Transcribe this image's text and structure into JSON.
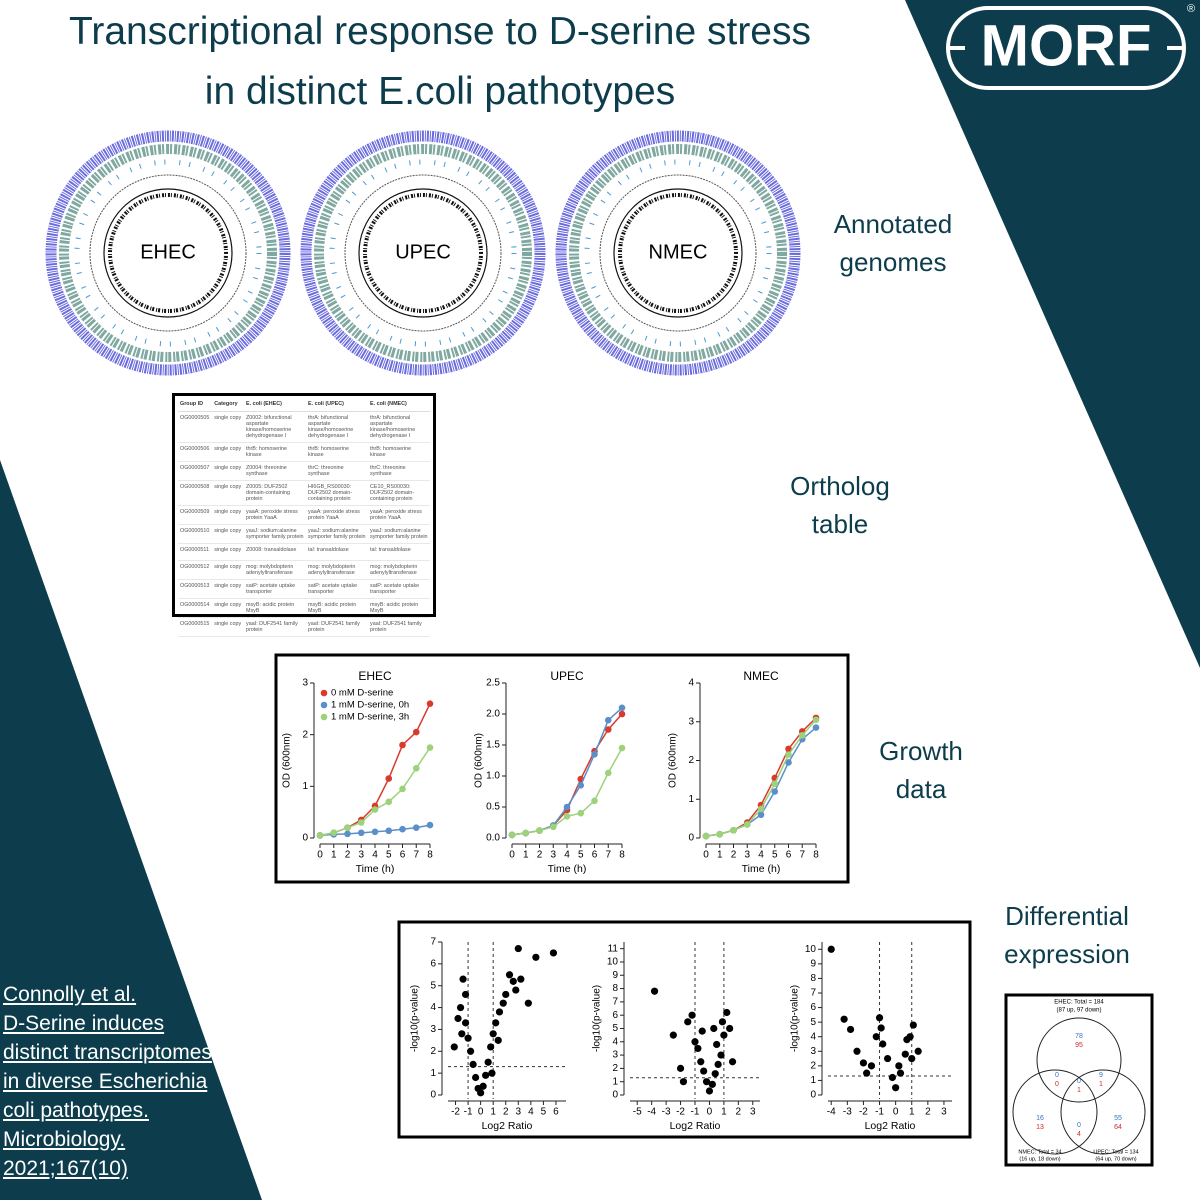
{
  "header": {
    "title_lines": [
      "Transcriptional response to D-serine stress",
      "in distinct E.coli pathotypes"
    ],
    "logo": "MORF",
    "registered": "®"
  },
  "genomes": {
    "labels": [
      "EHEC",
      "UPEC",
      "NMEC"
    ],
    "caption": "Annotated genomes"
  },
  "ortholog_table": {
    "caption": "Ortholog table",
    "columns": [
      "Group ID",
      "Category",
      "E. coli (EHEC)",
      "E. coli (UPEC)",
      "E. coli (NMEC)"
    ],
    "rows": [
      [
        "OG0000505",
        "single copy",
        "Z0002: bifunctional aspartate kinase/homoserine dehydrogenase I",
        "thrA: bifunctional aspartate kinase/homoserine dehydrogenase I",
        "thrA: bifunctional aspartate kinase/homoserine dehydrogenase I"
      ],
      [
        "OG0000506",
        "single copy",
        "thrB: homoserine kinase",
        "thrB: homoserine kinase",
        "thrB: homoserine kinase"
      ],
      [
        "OG0000507",
        "single copy",
        "Z0004: threonine synthase",
        "thrC: threonine synthase",
        "thrC: threonine synthase"
      ],
      [
        "OG0000508",
        "single copy",
        "Z0005: DUF2502 domain-containing protein",
        "HI6GB_RS00030: DUF2502 domain-containing protein",
        "CE10_RS00030: DUF2502 domain-containing protein"
      ],
      [
        "OG0000509",
        "single copy",
        "yaaA: peroxide stress protein YaaA",
        "yaaA: peroxide stress protein YaaA",
        "yaaA: peroxide stress protein YaaA"
      ],
      [
        "OG0000510",
        "single copy",
        "yaaJ: sodium:alanine symporter family protein",
        "yaaJ: sodium:alanine symporter family protein",
        "yaaJ: sodium:alanine symporter family protein"
      ],
      [
        "OG0000511",
        "single copy",
        "Z0008: transaldolase",
        "tal: transaldolase",
        "tal: transaldolase"
      ],
      [
        "OG0000512",
        "single copy",
        "mog: molybdopterin adenylyltransferase",
        "mog: molybdopterin adenylyltransferase",
        "mog: molybdopterin adenylyltransferase"
      ],
      [
        "OG0000513",
        "single copy",
        "satP: acetate uptake transporter",
        "satP: acetate uptake transporter",
        "satP: acetate uptake transporter"
      ],
      [
        "OG0000514",
        "single copy",
        "msyB: acidic protein MsyB",
        "msyB: acidic protein MsyB",
        "msyB: acidic protein MsyB"
      ],
      [
        "OG0000515",
        "single copy",
        "yaaI: DUF2541 family protein",
        "yaaI: DUF2541 family protein",
        "yaaI: DUF2541 family protein"
      ]
    ]
  },
  "growth_caption": "Growth data",
  "expression_caption": "Differential expression",
  "chart_data": [
    {
      "type": "line",
      "title": "EHEC",
      "x_label": "Time (h)",
      "y_label": "OD (600nm)",
      "x": [
        0,
        1,
        2,
        3,
        4,
        5,
        6,
        7,
        8
      ],
      "xlim": [
        0,
        8
      ],
      "xticks": [
        0,
        1,
        2,
        3,
        4,
        5,
        6,
        7,
        8
      ],
      "ylim": [
        0,
        3
      ],
      "yticks": [
        0,
        1,
        2,
        3
      ],
      "series": [
        {
          "name": "0 mM D-serine",
          "color": "#d93a2b",
          "values": [
            0.05,
            0.1,
            0.2,
            0.35,
            0.62,
            1.15,
            1.8,
            2.05,
            2.6
          ]
        },
        {
          "name": "1 mM D-serine, 0h",
          "color": "#5b8fc9",
          "values": [
            0.05,
            0.07,
            0.08,
            0.1,
            0.12,
            0.14,
            0.17,
            0.2,
            0.25
          ]
        },
        {
          "name": "1 mM D-serine, 3h",
          "color": "#9bd27a",
          "values": [
            0.05,
            0.1,
            0.2,
            0.3,
            0.55,
            0.7,
            0.95,
            1.35,
            1.75
          ]
        }
      ]
    },
    {
      "type": "line",
      "title": "UPEC",
      "x_label": "Time (h)",
      "y_label": "OD (600nm)",
      "x": [
        0,
        1,
        2,
        3,
        4,
        5,
        6,
        7,
        8
      ],
      "xlim": [
        0,
        8
      ],
      "xticks": [
        0,
        1,
        2,
        3,
        4,
        5,
        6,
        7,
        8
      ],
      "ylim": [
        0,
        2.5
      ],
      "yticks": [
        {
          "value": 0,
          "label": "0.0"
        },
        0.5,
        {
          "value": 1,
          "label": "1.0"
        },
        1.5,
        {
          "value": 2,
          "label": "2.0"
        },
        2.5
      ],
      "series": [
        {
          "color": "#d93a2b",
          "values": [
            0.05,
            0.08,
            0.12,
            0.2,
            0.45,
            0.95,
            1.4,
            1.75,
            2.0
          ]
        },
        {
          "color": "#5b8fc9",
          "values": [
            0.05,
            0.08,
            0.12,
            0.2,
            0.5,
            0.85,
            1.35,
            1.9,
            2.1
          ]
        },
        {
          "color": "#9bd27a",
          "values": [
            0.05,
            0.08,
            0.12,
            0.18,
            0.35,
            0.4,
            0.6,
            1.05,
            1.45
          ]
        }
      ]
    },
    {
      "type": "line",
      "title": "NMEC",
      "x_label": "Time (h)",
      "y_label": "OD (600nm)",
      "x": [
        0,
        1,
        2,
        3,
        4,
        5,
        6,
        7,
        8
      ],
      "xlim": [
        0,
        8
      ],
      "xticks": [
        0,
        1,
        2,
        3,
        4,
        5,
        6,
        7,
        8
      ],
      "ylim": [
        0,
        4
      ],
      "yticks": [
        0,
        1,
        2,
        3,
        4
      ],
      "series": [
        {
          "color": "#d93a2b",
          "values": [
            0.05,
            0.1,
            0.2,
            0.4,
            0.85,
            1.55,
            2.3,
            2.75,
            3.1
          ]
        },
        {
          "color": "#5b8fc9",
          "values": [
            0.05,
            0.1,
            0.2,
            0.35,
            0.6,
            1.2,
            1.95,
            2.55,
            2.85
          ]
        },
        {
          "color": "#9bd27a",
          "values": [
            0.05,
            0.1,
            0.2,
            0.35,
            0.75,
            1.4,
            2.15,
            2.65,
            3.05
          ]
        }
      ]
    },
    {
      "type": "scatter",
      "x_label": "Log2 Ratio",
      "y_label": "-log10(p-value)",
      "color": "#000000",
      "xlim": [
        -2.6,
        6.8
      ],
      "xticks": [
        -2,
        -1,
        0,
        1,
        2,
        3,
        4,
        5,
        6
      ],
      "ylim": [
        0,
        7
      ],
      "yticks": [
        0,
        1,
        2,
        3,
        4,
        5,
        6,
        7
      ],
      "thresholds": {
        "x": [
          -1,
          1
        ],
        "y": 1.3
      },
      "x": [
        -2.1,
        -1.8,
        -1.6,
        -1.4,
        -1.2,
        -1.0,
        -0.8,
        -0.6,
        -0.4,
        -0.2,
        0,
        0.2,
        0.4,
        0.6,
        0.8,
        1.0,
        1.2,
        1.5,
        1.8,
        2.0,
        2.3,
        2.6,
        3.0,
        3.2,
        3.8,
        4.4,
        5.8,
        -1.5,
        -1.2,
        0.9,
        1.4,
        2.8
      ],
      "values": [
        2.2,
        3.5,
        4.0,
        5.3,
        3.3,
        2.6,
        2.0,
        1.4,
        0.8,
        0.3,
        0.1,
        0.4,
        0.9,
        1.5,
        2.2,
        2.8,
        3.3,
        3.8,
        4.2,
        4.6,
        5.5,
        5.2,
        6.7,
        5.3,
        4.2,
        6.3,
        6.5,
        2.8,
        4.6,
        1.0,
        2.5,
        4.8
      ]
    },
    {
      "type": "scatter",
      "x_label": "Log2 Ratio",
      "y_label": "-log10(p-value)",
      "color": "#000000",
      "xlim": [
        -5.5,
        3.5
      ],
      "xticks": [
        -5,
        -4,
        -3,
        -2,
        -1,
        0,
        1,
        2,
        3
      ],
      "ylim": [
        0,
        11.5
      ],
      "yticks": [
        0,
        1,
        2,
        3,
        4,
        5,
        6,
        7,
        8,
        9,
        10,
        11
      ],
      "thresholds": {
        "x": [
          -1,
          1
        ],
        "y": 1.3
      },
      "x": [
        -3.8,
        -2.5,
        -1.5,
        -1.2,
        -1.0,
        -0.8,
        -0.6,
        -0.4,
        -0.2,
        0,
        0.2,
        0.4,
        0.6,
        0.8,
        1.0,
        1.2,
        1.4,
        -2.0,
        -0.5,
        0.5,
        0.9,
        1.6,
        -1.8,
        0.3
      ],
      "values": [
        7.8,
        4.5,
        5.5,
        6.0,
        4.0,
        3.5,
        2.5,
        1.8,
        1.0,
        0.3,
        0.8,
        1.6,
        2.3,
        3.0,
        4.5,
        6.2,
        5.0,
        2.0,
        4.8,
        3.8,
        5.5,
        2.5,
        1.0,
        5.0
      ]
    },
    {
      "type": "scatter",
      "x_label": "Log2 Ratio",
      "y_label": "-log10(p-value)",
      "color": "#000000",
      "xlim": [
        -4.2,
        3.5
      ],
      "xticks": [
        -4,
        -3,
        -2,
        -1,
        0,
        1,
        2,
        3
      ],
      "ylim": [
        0,
        10.5
      ],
      "yticks": [
        0,
        1,
        2,
        3,
        4,
        5,
        6,
        7,
        8,
        9,
        10
      ],
      "thresholds": {
        "x": [
          -1,
          1
        ],
        "y": 1.3
      },
      "x": [
        -4,
        -3.2,
        -2.8,
        -2.4,
        -2.0,
        -1.5,
        -1.2,
        -1.0,
        -0.8,
        -0.5,
        -0.2,
        0,
        0.3,
        0.6,
        0.9,
        1.1,
        1.4,
        -0.9,
        0.7,
        -1.8,
        0.2,
        1.0
      ],
      "values": [
        10.0,
        5.2,
        4.5,
        3.0,
        2.2,
        2.0,
        4.0,
        5.3,
        3.5,
        2.5,
        1.2,
        0.5,
        1.5,
        2.8,
        4.0,
        4.8,
        3.0,
        4.6,
        3.8,
        1.5,
        2.0,
        2.5
      ]
    }
  ],
  "venn": {
    "labels": {
      "ehec": [
        "EHEC: Total = 184",
        "(87 up, 97 down)"
      ],
      "nmec": [
        "NMEC: Total = 34",
        "(16 up, 18 down)"
      ],
      "upec": [
        "UPEC: Total = 134",
        "(64 up, 70 down)"
      ]
    },
    "regions": {
      "ehec_only": {
        "up": 78,
        "down": 95
      },
      "ehec_nmec": {
        "up": 0,
        "down": 0
      },
      "ehec_upec": {
        "up": 9,
        "down": 1
      },
      "all": {
        "up": 0,
        "down": 1
      },
      "nmec_only": {
        "up": 16,
        "down": 13
      },
      "nmec_upec": {
        "up": 0,
        "down": 4
      },
      "upec_only": {
        "up": 55,
        "down": 64
      }
    }
  },
  "citation": [
    "Connolly et al.",
    "D-Serine induces",
    "distinct transcriptomes",
    "in diverse Escherichia",
    "coli pathotypes.",
    "Microbiology.",
    "2021;167(10)"
  ]
}
